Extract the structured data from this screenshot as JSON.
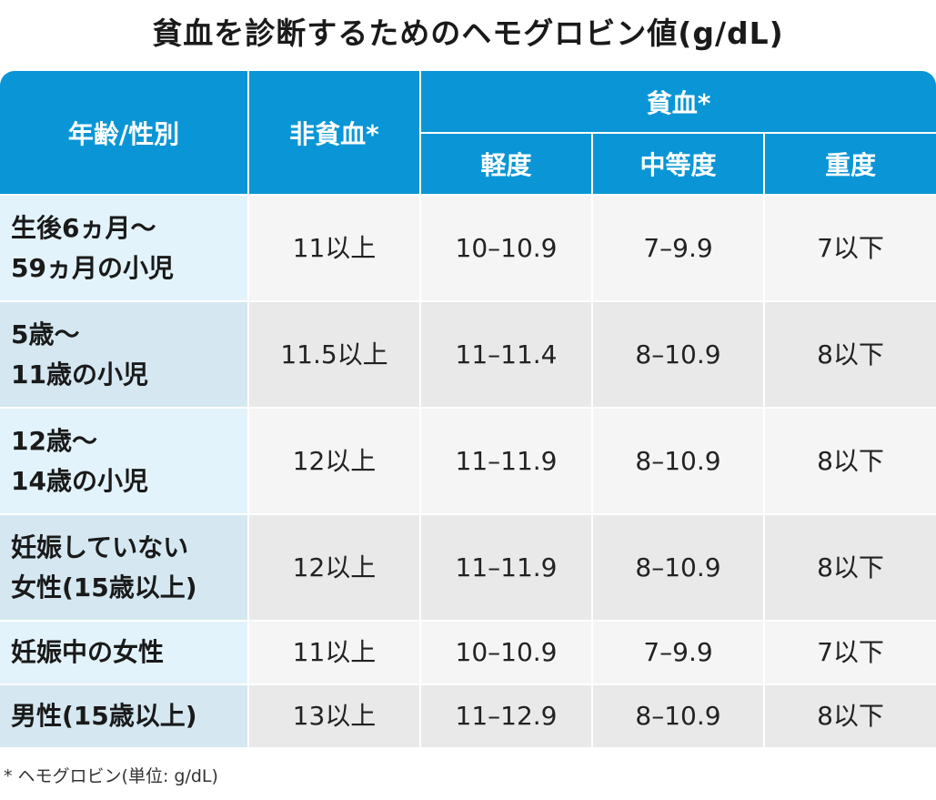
{
  "title": "貧血を診断するためのヘモグロビン値(g/dL)",
  "header": {
    "col_group": "年齢/性別",
    "non_anemia": "非貧血*",
    "anemia": "貧血*",
    "mild": "軽度",
    "moderate": "中等度",
    "severe": "重度"
  },
  "rows": [
    {
      "group_lines": [
        "生後6ヵ月〜",
        "59ヵ月の小児"
      ],
      "non_anemia": "11以上",
      "mild": "10–10.9",
      "moderate": "7–9.9",
      "severe": "7以下"
    },
    {
      "group_lines": [
        "5歳〜",
        "11歳の小児"
      ],
      "non_anemia": "11.5以上",
      "mild": "11–11.4",
      "moderate": "8–10.9",
      "severe": "8以下"
    },
    {
      "group_lines": [
        "12歳〜",
        "14歳の小児"
      ],
      "non_anemia": "12以上",
      "mild": "11–11.9",
      "moderate": "8–10.9",
      "severe": "8以下"
    },
    {
      "group_lines": [
        "妊娠していない",
        "女性(15歳以上)"
      ],
      "non_anemia": "12以上",
      "mild": "11–11.9",
      "moderate": "8–10.9",
      "severe": "8以下"
    },
    {
      "group_lines": [
        "妊娠中の女性"
      ],
      "non_anemia": "11以上",
      "mild": "10–10.9",
      "moderate": "7–9.9",
      "severe": "7以下"
    },
    {
      "group_lines": [
        "男性(15歳以上)"
      ],
      "non_anemia": "13以上",
      "mild": "11–12.9",
      "moderate": "8–10.9",
      "severe": "8以下"
    }
  ],
  "footnote": "* ヘモグロビン(単位: g/dL)"
}
